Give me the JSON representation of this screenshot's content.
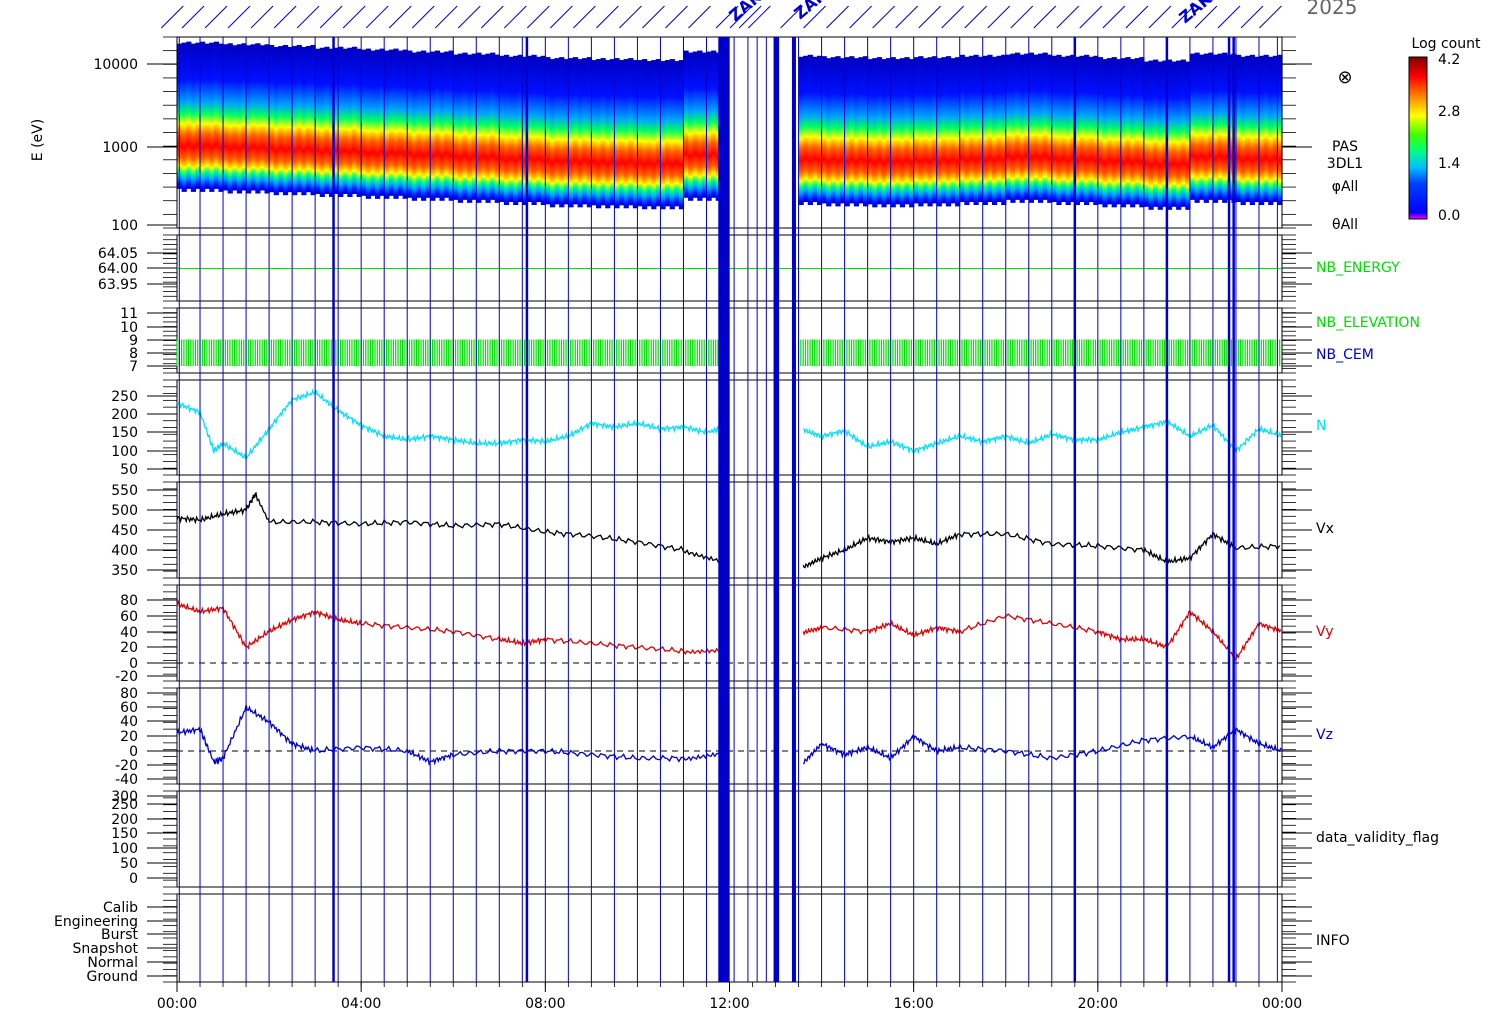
{
  "header": {
    "top_label": "2025",
    "markers": [
      {
        "text": "ZAKO"
      },
      {
        "text": "ZAKO"
      },
      {
        "text": "ZAKO"
      }
    ]
  },
  "chart_data": {
    "type": "line",
    "x_axis": {
      "ticks": [
        "00:00",
        "04:00",
        "08:00",
        "12:00",
        "16:00",
        "20:00",
        "00:00"
      ],
      "range_hours": [
        0,
        24
      ]
    },
    "event_lines": {
      "color": "#0000cc",
      "hours_thin": [
        0.05,
        0.5,
        1.0,
        1.5,
        2.0,
        2.5,
        3.0,
        3.5,
        4.0,
        4.5,
        5.0,
        5.5,
        6.0,
        6.5,
        7.0,
        7.5,
        8.0,
        8.5,
        9.0,
        9.5,
        10.0,
        10.5,
        11.0,
        11.5,
        12.1,
        12.4,
        12.6,
        12.8,
        13.5,
        14.0,
        14.5,
        15.0,
        15.5,
        16.0,
        16.5,
        17.0,
        17.5,
        18.0,
        18.5,
        19.0,
        19.5,
        20.0,
        20.5,
        21.0,
        21.5,
        22.0,
        22.5,
        23.0,
        23.5,
        23.9
      ],
      "hours_thick": [
        3.4,
        7.6,
        13.05,
        19.5,
        21.5,
        22.85,
        22.95
      ],
      "hours_blocks": [
        11.8,
        11.88,
        11.96,
        13.0,
        13.4
      ]
    },
    "panels": [
      {
        "id": "spectrogram",
        "type": "heatmap",
        "ylabel": "E (eV)",
        "scale": "log",
        "ylim": [
          100,
          15000
        ],
        "y_ticks": [
          "100",
          "1000",
          "10000"
        ],
        "right_labels": [
          "PAS",
          "3DL1",
          "φAll",
          "θAll"
        ],
        "marker_symbol": "⊗",
        "peak_energy_ev": [
          1200,
          1150,
          1100,
          1050,
          1000,
          950,
          900,
          850,
          800,
          780,
          760,
          950,
          900,
          850,
          820,
          800,
          820,
          850,
          900,
          850,
          800,
          750,
          900,
          850
        ],
        "data_gap_hours": [
          11.85,
          13.5
        ],
        "colorbar": {
          "label": "Log count",
          "ticks": [
            "0.0",
            "1.4",
            "2.8",
            "4.2"
          ],
          "range": [
            0.0,
            4.2
          ]
        }
      },
      {
        "id": "nb-energy",
        "type": "line",
        "name": "NB_ENERGY",
        "color": "#00e000",
        "y_ticks": [
          "63.95",
          "64.00",
          "64.05"
        ],
        "ylim": [
          63.925,
          64.075
        ],
        "value": 64.0
      },
      {
        "id": "nb-elevation",
        "type": "bar",
        "names": [
          "NB_ELEVATION",
          "NB_CEM"
        ],
        "label_colors": [
          "#00e000",
          "#0000cc"
        ],
        "color": "#00e000",
        "y_ticks": [
          "7",
          "8",
          "9",
          "10",
          "11"
        ],
        "ylim": [
          6.7,
          11.3
        ],
        "band": [
          7,
          9
        ]
      },
      {
        "id": "density",
        "type": "line",
        "name": "N",
        "color": "#00e0ff",
        "y_ticks": [
          "50",
          "100",
          "150",
          "200",
          "250"
        ],
        "ylim": [
          30,
          290
        ],
        "x": [
          0,
          0.5,
          0.8,
          1.0,
          1.5,
          2.0,
          2.5,
          3.0,
          3.5,
          4.0,
          4.5,
          5.0,
          5.5,
          6.0,
          6.5,
          7.0,
          7.5,
          8.0,
          8.5,
          9.0,
          9.5,
          10.0,
          10.5,
          11.0,
          11.5,
          11.8,
          13.6,
          14.0,
          14.5,
          15.0,
          15.5,
          16.0,
          16.5,
          17.0,
          17.5,
          18.0,
          18.5,
          19.0,
          19.5,
          20.0,
          20.5,
          21.0,
          21.5,
          22.0,
          22.5,
          23.0,
          23.5,
          24.0
        ],
        "values": [
          230,
          205,
          100,
          120,
          80,
          160,
          240,
          260,
          210,
          170,
          140,
          130,
          140,
          130,
          120,
          120,
          130,
          125,
          140,
          175,
          165,
          175,
          160,
          165,
          150,
          160,
          160,
          140,
          155,
          110,
          125,
          100,
          120,
          140,
          125,
          140,
          120,
          145,
          130,
          130,
          150,
          165,
          180,
          140,
          170,
          100,
          160,
          140
        ]
      },
      {
        "id": "vx",
        "type": "line",
        "name": "Vx",
        "color": "#000000",
        "y_ticks": [
          "350",
          "400",
          "450",
          "500",
          "550"
        ],
        "ylim": [
          330,
          570
        ],
        "x": [
          0,
          0.5,
          1.0,
          1.5,
          1.7,
          2.0,
          3.0,
          4.0,
          5.0,
          6.0,
          7.0,
          8.0,
          9.0,
          10.0,
          11.0,
          11.8,
          13.6,
          14.0,
          14.5,
          15.0,
          15.5,
          16.0,
          16.5,
          17.0,
          18.0,
          19.0,
          20.0,
          21.0,
          21.5,
          22.0,
          22.5,
          23.0,
          24.0
        ],
        "values": [
          480,
          475,
          490,
          500,
          540,
          470,
          470,
          465,
          470,
          460,
          465,
          445,
          435,
          420,
          400,
          370,
          360,
          380,
          400,
          430,
          420,
          430,
          415,
          440,
          440,
          415,
          410,
          400,
          370,
          380,
          440,
          405,
          410
        ]
      },
      {
        "id": "vy",
        "type": "line",
        "name": "Vy",
        "color": "#e00000",
        "y_ticks": [
          "-20",
          "0",
          "20",
          "40",
          "60",
          "80"
        ],
        "ylim": [
          -25,
          90
        ],
        "zero_line": true,
        "x": [
          0,
          0.5,
          1.0,
          1.5,
          2.0,
          2.5,
          3.0,
          3.5,
          4.0,
          5.0,
          6.0,
          7.0,
          7.5,
          8.0,
          9.0,
          10.0,
          11.0,
          11.8,
          13.6,
          14.0,
          15.0,
          15.5,
          16.0,
          16.5,
          17.0,
          18.0,
          19.0,
          20.0,
          20.5,
          21.0,
          21.5,
          22.0,
          22.5,
          23.0,
          23.5,
          24.0
        ],
        "values": [
          75,
          65,
          70,
          20,
          40,
          55,
          65,
          55,
          50,
          45,
          40,
          30,
          25,
          30,
          25,
          20,
          15,
          15,
          40,
          45,
          40,
          50,
          35,
          45,
          40,
          60,
          50,
          40,
          30,
          30,
          20,
          65,
          40,
          5,
          50,
          40
        ]
      },
      {
        "id": "vz",
        "type": "line",
        "name": "Vz",
        "color": "#0000cc",
        "y_ticks": [
          "-40",
          "-20",
          "0",
          "20",
          "40",
          "60",
          "80"
        ],
        "ylim": [
          -45,
          90
        ],
        "zero_line": true,
        "x": [
          0,
          0.5,
          0.8,
          1.0,
          1.5,
          2.0,
          2.5,
          3.0,
          4.0,
          5.0,
          5.5,
          6.0,
          7.0,
          8.0,
          9.0,
          10.0,
          11.0,
          11.8,
          13.6,
          14.0,
          14.5,
          15.0,
          15.5,
          16.0,
          16.5,
          17.0,
          18.0,
          19.0,
          20.0,
          21.0,
          22.0,
          22.5,
          23.0,
          23.5,
          24.0
        ],
        "values": [
          25,
          30,
          -15,
          -10,
          60,
          40,
          10,
          0,
          5,
          0,
          -15,
          -5,
          0,
          0,
          -5,
          -10,
          -10,
          -5,
          -15,
          10,
          -5,
          5,
          -10,
          20,
          0,
          5,
          0,
          -10,
          0,
          15,
          20,
          5,
          30,
          10,
          0
        ]
      },
      {
        "id": "validity",
        "type": "line",
        "name": "data_validity_flag",
        "color": "#000000",
        "y_ticks": [
          "0",
          "50",
          "100",
          "150",
          "200",
          "250",
          "300"
        ],
        "ylim": [
          -20,
          320
        ]
      },
      {
        "id": "info",
        "type": "table",
        "name": "INFO",
        "color": "#000000",
        "y_ticks": [
          "Ground",
          "Normal",
          "Snapshot",
          "Burst",
          "Engineering",
          "Calib"
        ]
      }
    ]
  }
}
